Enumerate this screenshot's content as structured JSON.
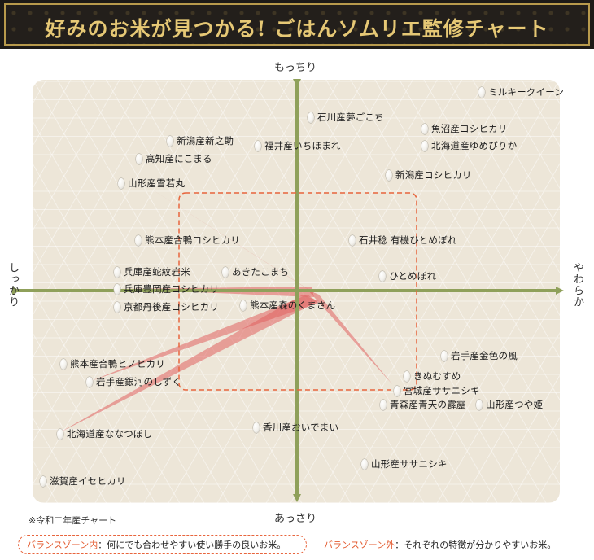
{
  "header": {
    "title": "好みのお米が見つかる! ごはんソムリエ監修チャート"
  },
  "axes": {
    "top": "もっちり",
    "bottom": "あっさり",
    "left": "しっかり",
    "right": "やわらか"
  },
  "rice": [
    {
      "id": "milky",
      "label": "ミルキークイーン"
    },
    {
      "id": "ishikawa",
      "label": "石川産夢ごこち"
    },
    {
      "id": "uonuma",
      "label": "魚沼産コシヒカリ"
    },
    {
      "id": "niigata_shin",
      "label": "新潟産新之助"
    },
    {
      "id": "fukui",
      "label": "福井産いちほまれ"
    },
    {
      "id": "hokkaido_yume",
      "label": "北海道産ゆめぴりか"
    },
    {
      "id": "kochi",
      "label": "高知産にこまる"
    },
    {
      "id": "niigata_koshi",
      "label": "新潟産コシヒカリ"
    },
    {
      "id": "yamagata_yuki",
      "label": "山形産雪若丸"
    },
    {
      "id": "kumamoto_koshi",
      "label": "熊本産合鴨コシヒカリ"
    },
    {
      "id": "ishii",
      "label": "石井稔 有機ひとめぼれ"
    },
    {
      "id": "hyogo_jaku",
      "label": "兵庫産蛇紋岩米"
    },
    {
      "id": "akita",
      "label": "あきたこまち"
    },
    {
      "id": "hitome",
      "label": "ひとめぼれ"
    },
    {
      "id": "hyogo_toyo",
      "label": "兵庫豊岡産コシヒカリ"
    },
    {
      "id": "kumamoto_mori",
      "label": "熊本産森のくまさん"
    },
    {
      "id": "kyoto",
      "label": "京都丹後産コシヒカリ"
    },
    {
      "id": "iwate_kin",
      "label": "岩手産金色の風"
    },
    {
      "id": "kumamoto_hino",
      "label": "熊本産合鴨ヒノヒカリ"
    },
    {
      "id": "kinu",
      "label": "きぬむすめ"
    },
    {
      "id": "iwate_gin",
      "label": "岩手産銀河のしずく"
    },
    {
      "id": "miyagi",
      "label": "宮城産ササニシキ"
    },
    {
      "id": "aomori",
      "label": "青森産青天の霹靂"
    },
    {
      "id": "yamagata_tsuya",
      "label": "山形産つや姫"
    },
    {
      "id": "kagawa",
      "label": "香川産おいでまい"
    },
    {
      "id": "hokkaido_nana",
      "label": "北海道産ななつぼし"
    },
    {
      "id": "yamagata_sasa",
      "label": "山形産ササニシキ"
    },
    {
      "id": "shiga",
      "label": "滋賀産イセヒカリ"
    }
  ],
  "footnote": "※令和二年産チャート",
  "legend": {
    "inside_key": "バランスゾーン内",
    "inside_text": "：何にでも合わせやすい使い勝手の良いお米。",
    "outside_key": "バランスゾーン外",
    "outside_text": "：それぞれの特徴が分かりやすいお米。"
  },
  "colors": {
    "axis": "#8fa05a",
    "zone": "#e8653d",
    "beam": "#e06060",
    "header_text": "#e6c875"
  }
}
